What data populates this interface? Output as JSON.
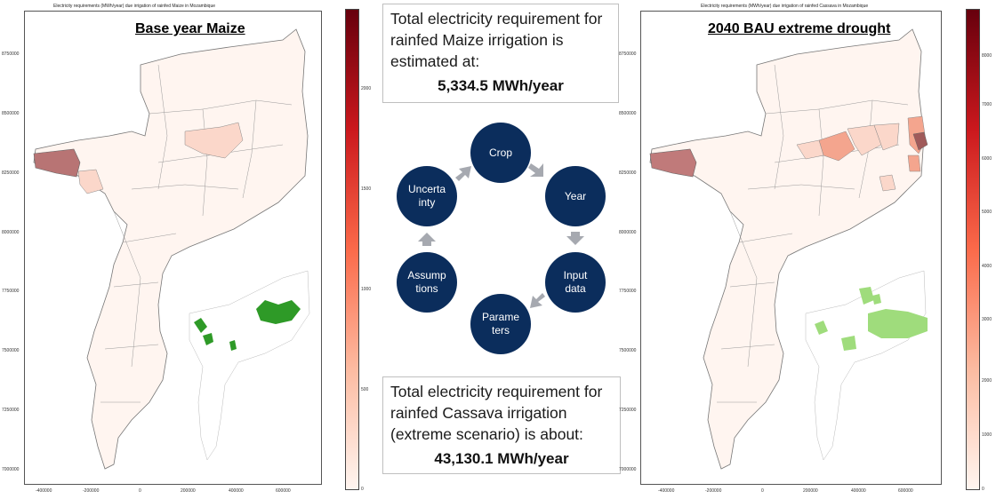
{
  "left_map": {
    "small_title": "Electricity requirements (MWh/year) due irrigation of rainfed Maize in Mozambique",
    "heading": "Base year Maize",
    "y_ticks": [
      "8750000",
      "8500000",
      "8250000",
      "8000000",
      "7750000",
      "7500000",
      "7250000",
      "7000000"
    ],
    "x_ticks": [
      "-400000",
      "-200000",
      "0",
      "200000",
      "400000",
      "600000"
    ],
    "colorbar_ticks": [
      "2000",
      "1500",
      "1000",
      "500",
      "0"
    ]
  },
  "right_map": {
    "small_title": "Electricity requirements (MWh/year) due irrigation of rainfed Cassava in Mozambique",
    "heading": "2040 BAU extreme drought",
    "y_ticks": [
      "8750000",
      "8500000",
      "8250000",
      "8000000",
      "7750000",
      "7500000",
      "7250000",
      "7000000"
    ],
    "x_ticks": [
      "-400000",
      "-200000",
      "0",
      "200000",
      "400000",
      "600000"
    ],
    "colorbar_ticks": [
      "8000",
      "7000",
      "6000",
      "5000",
      "4000",
      "3000",
      "2000",
      "1000",
      "0"
    ]
  },
  "top_box": {
    "line1": "Total electricity requirement for",
    "line2": "rainfed Maize irrigation is",
    "line3": "estimated at:",
    "value": "5,334.5 MWh/year"
  },
  "bottom_box": {
    "line1": "Total electricity requirement for",
    "line2": "rainfed Cassava irrigation",
    "line3": "(extreme scenario) is about:",
    "value": "43,130.1 MWh/year"
  },
  "cycle": {
    "crop": "Crop",
    "year": "Year",
    "input1": "Input",
    "input2": "data",
    "param1": "Parame",
    "param2": "ters",
    "assump1": "Assump",
    "assump2": "tions",
    "uncert1": "Uncerta",
    "uncert2": "inty"
  },
  "colors": {
    "node": "#0b2d5c",
    "arrow": "#a6a9b0",
    "green_dark": "#2e9a27",
    "green_light": "#9fdc7c",
    "border": "#555555"
  }
}
